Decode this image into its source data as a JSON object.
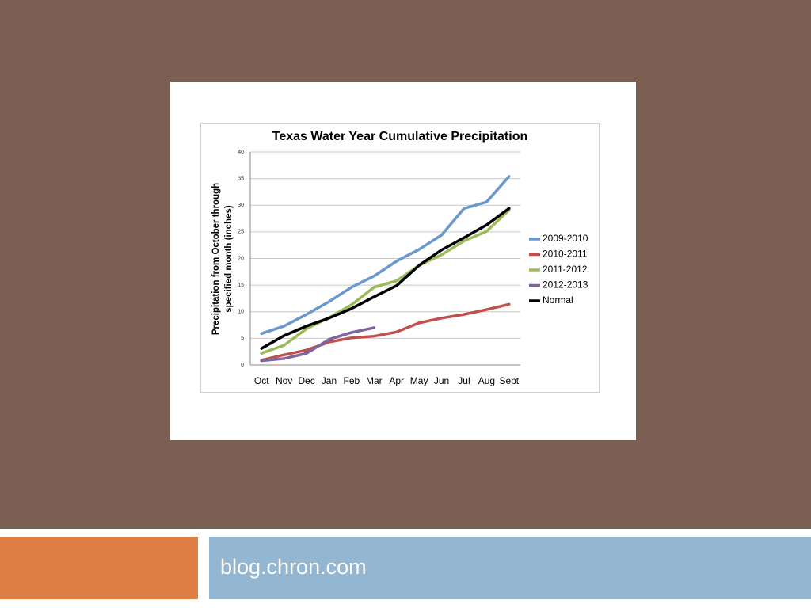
{
  "chart_data": {
    "type": "line",
    "title": "Texas Water Year Cumulative Precipitation",
    "ylabel": [
      "Precipitation from October through",
      "specified month (inches)"
    ],
    "categories": [
      "Oct",
      "Nov",
      "Dec",
      "Jan",
      "Feb",
      "Mar",
      "Apr",
      "May",
      "Jun",
      "Jul",
      "Aug",
      "Sept"
    ],
    "series": [
      {
        "name": "2009-2010",
        "color": "#6a98cc",
        "values": [
          5.9,
          7.3,
          9.5,
          11.9,
          14.6,
          16.7,
          19.5,
          21.7,
          24.4,
          29.4,
          30.6,
          35.4
        ]
      },
      {
        "name": "2010-2011",
        "color": "#c0504d",
        "values": [
          0.9,
          1.9,
          2.8,
          4.3,
          5.1,
          5.4,
          6.2,
          7.9,
          8.8,
          9.5,
          10.4,
          11.4
        ]
      },
      {
        "name": "2011-2012",
        "color": "#9bbb59",
        "values": [
          2.2,
          3.7,
          6.8,
          8.9,
          11.3,
          14.6,
          15.8,
          18.7,
          20.7,
          23.3,
          25.1,
          29.1
        ]
      },
      {
        "name": "2012-2013",
        "color": "#8064a2",
        "values": [
          0.8,
          1.2,
          2.2,
          4.8,
          6.1,
          7.0,
          null,
          null,
          null,
          null,
          null,
          null
        ]
      },
      {
        "name": "Normal",
        "color": "#000000",
        "values": [
          3.1,
          5.5,
          7.3,
          8.8,
          10.6,
          12.8,
          14.9,
          18.7,
          21.6,
          23.9,
          26.3,
          29.4
        ]
      }
    ],
    "ylim": [
      0,
      40
    ],
    "yticks": [
      0,
      5,
      10,
      15,
      20,
      25,
      30,
      35,
      40
    ],
    "grid": true,
    "legend": "right"
  },
  "footer": {
    "text": "blog.chron.com"
  }
}
